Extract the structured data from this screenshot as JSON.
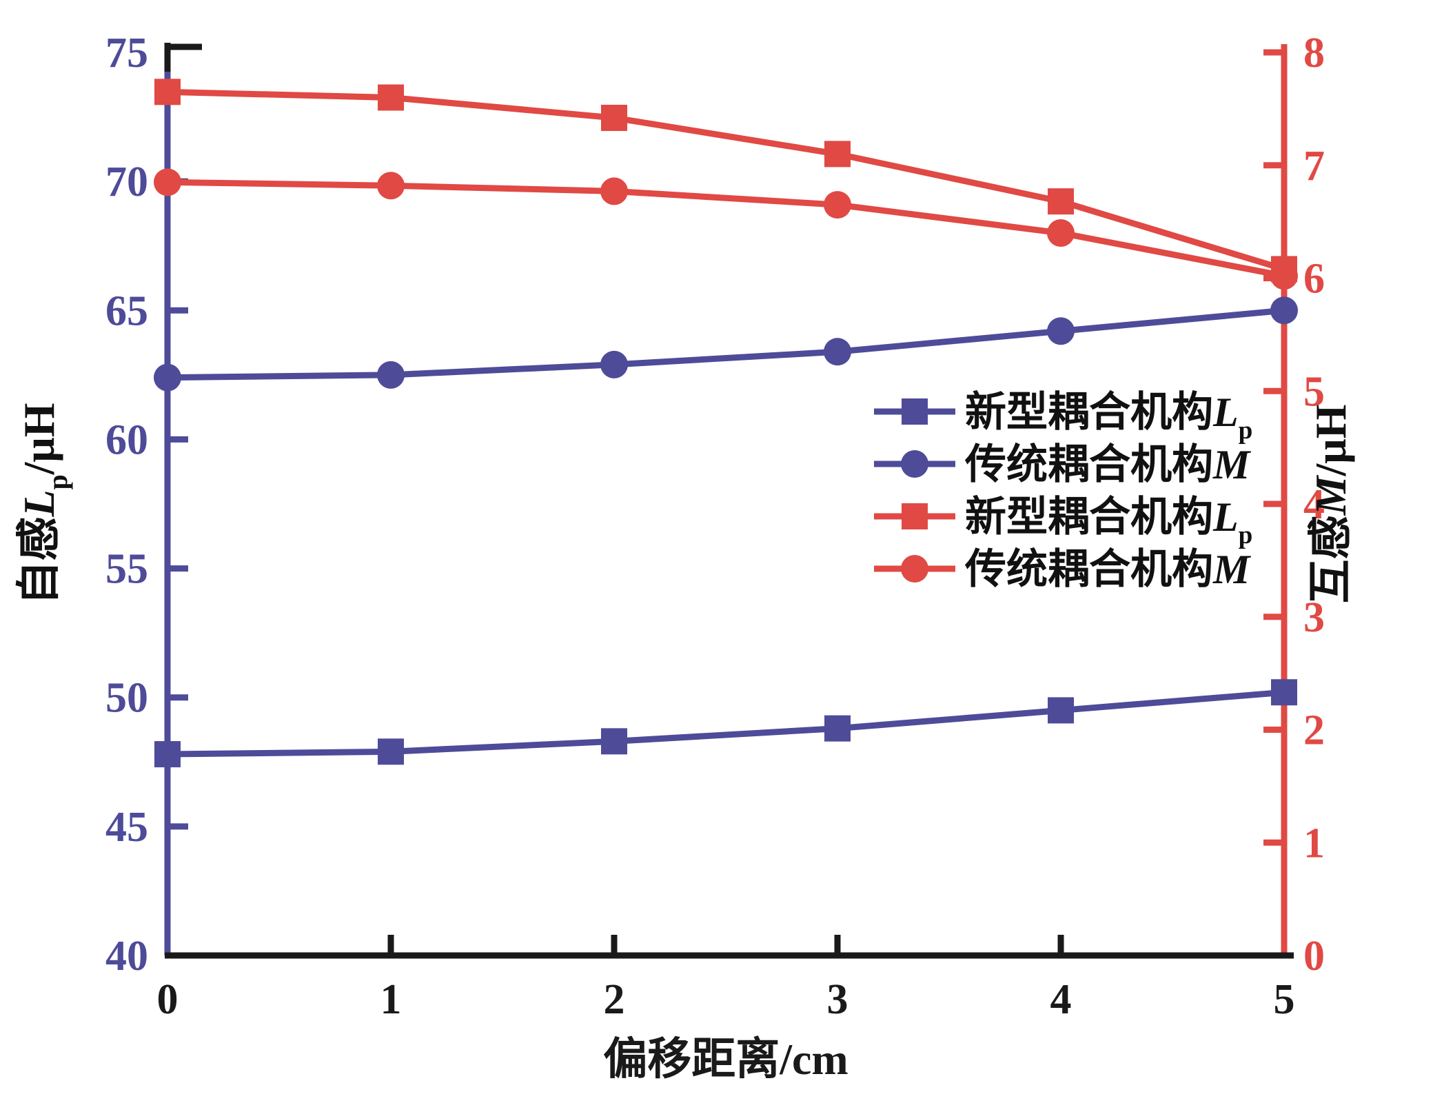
{
  "chart_data": {
    "type": "line",
    "x": [
      0,
      1,
      2,
      3,
      4,
      5
    ],
    "x_axis": {
      "label": "偏移距离/cm",
      "ticks": [
        0,
        1,
        2,
        3,
        4,
        5
      ],
      "range": [
        0,
        5
      ],
      "color": "#1a1a1a"
    },
    "left_axis": {
      "label_plain": "自感Lp/μH",
      "label_parts": [
        {
          "text": "自感"
        },
        {
          "text": "L",
          "italic": true
        },
        {
          "text": "p",
          "sub": true
        },
        {
          "text": "/μH"
        }
      ],
      "ticks": [
        40,
        45,
        50,
        55,
        60,
        65,
        70,
        75
      ],
      "range": [
        40,
        75
      ],
      "color": "#4E4B99"
    },
    "right_axis": {
      "label_plain": "互感M/μH",
      "label_parts": [
        {
          "text": "互感"
        },
        {
          "text": "M",
          "italic": true
        },
        {
          "text": "/μH"
        }
      ],
      "ticks": [
        0,
        1,
        2,
        3,
        4,
        5,
        6,
        7,
        8
      ],
      "range": [
        0,
        8
      ],
      "color": "#E04944"
    },
    "series": [
      {
        "name_plain": "新型耦合机构Lp",
        "name_parts": [
          {
            "text": "新型耦合机构"
          },
          {
            "text": "L",
            "italic": true
          },
          {
            "text": "p",
            "sub": true
          }
        ],
        "color": "#4E4B99",
        "marker": "square",
        "axis": "left",
        "values": [
          47.8,
          47.9,
          48.3,
          48.8,
          49.5,
          50.2
        ]
      },
      {
        "name_plain": "传统耦合机构M",
        "name_parts": [
          {
            "text": "传统耦合机构"
          },
          {
            "text": "M",
            "italic": true
          }
        ],
        "color": "#4E4B99",
        "marker": "circle",
        "axis": "left",
        "values": [
          62.4,
          62.5,
          62.9,
          63.4,
          64.2,
          65.0
        ]
      },
      {
        "name_plain": "新型耦合机构Lp",
        "name_parts": [
          {
            "text": "新型耦合机构"
          },
          {
            "text": "L",
            "italic": true
          },
          {
            "text": "p",
            "sub": true
          }
        ],
        "color": "#E04944",
        "marker": "square",
        "axis": "right",
        "values": [
          7.65,
          7.6,
          7.42,
          7.1,
          6.68,
          6.08
        ]
      },
      {
        "name_plain": "传统耦合机构M",
        "name_parts": [
          {
            "text": "传统耦合机构"
          },
          {
            "text": "M",
            "italic": true
          }
        ],
        "color": "#E04944",
        "marker": "circle",
        "axis": "right",
        "values": [
          6.85,
          6.82,
          6.77,
          6.65,
          6.4,
          6.02
        ]
      }
    ],
    "legend": {
      "position": "center-right",
      "frame": false,
      "text_color": "#111111"
    },
    "grid": false,
    "title": ""
  }
}
